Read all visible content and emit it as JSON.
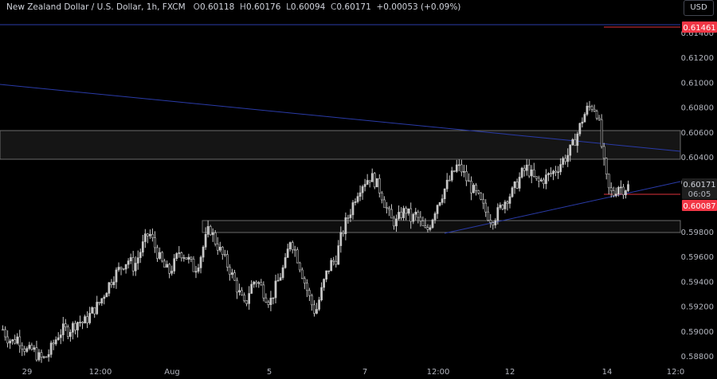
{
  "header": {
    "symbol": "New Zealand Dollar / U.S. Dollar, 1h, FXCM",
    "open_label": "O",
    "open": "0.60118",
    "high_label": "H",
    "high": "0.60176",
    "low_label": "L",
    "low": "0.60094",
    "close_label": "C",
    "close": "0.60171",
    "change": "+0.00053 (+0.09%)"
  },
  "currency_button": "USD",
  "price_labels": {
    "top_line": "0.61461",
    "current_price": "0.60171",
    "countdown": "06:05",
    "level_price": "0.60087"
  },
  "colors": {
    "background": "#000000",
    "candle_up": "#c8c8c8",
    "candle_down": "#c8c8c8",
    "trendline": "#2a3ba8",
    "zone_border": "#6a6a6a",
    "red_line": "#e0323c",
    "price_label_red": "#f23645"
  },
  "chart_data": {
    "type": "candlestick",
    "instrument": "NZDUSD",
    "timeframe": "1h",
    "y_axis_ticks": [
      "0.61400",
      "0.61200",
      "0.61000",
      "0.60800",
      "0.60600",
      "0.60400",
      "0.60200",
      "0.59800",
      "0.59600",
      "0.59400",
      "0.59200",
      "0.59000",
      "0.58800"
    ],
    "x_axis_ticks": [
      "29",
      "12:00",
      "Aug",
      "5",
      "7",
      "12:00",
      "12",
      "14",
      "12:0"
    ],
    "ylim": [
      0.5875,
      0.6154
    ],
    "candles_close_path": [
      0.5902,
      0.5895,
      0.5892,
      0.5896,
      0.5889,
      0.5884,
      0.5886,
      0.588,
      0.5878,
      0.5882,
      0.589,
      0.5898,
      0.5902,
      0.5901,
      0.5905,
      0.5909,
      0.5907,
      0.5912,
      0.5918,
      0.5922,
      0.593,
      0.5938,
      0.5945,
      0.595,
      0.5955,
      0.5958,
      0.5952,
      0.5962,
      0.5972,
      0.598,
      0.597,
      0.596,
      0.5952,
      0.5948,
      0.5955,
      0.5965,
      0.5962,
      0.5957,
      0.595,
      0.5958,
      0.5972,
      0.5984,
      0.5974,
      0.5966,
      0.5958,
      0.595,
      0.594,
      0.593,
      0.592,
      0.5935,
      0.5942,
      0.5938,
      0.593,
      0.5924,
      0.5935,
      0.5945,
      0.5955,
      0.5975,
      0.5965,
      0.5952,
      0.5938,
      0.5925,
      0.5915,
      0.593,
      0.5945,
      0.5955,
      0.5958,
      0.5975,
      0.5988,
      0.5998,
      0.601,
      0.6018,
      0.6022,
      0.6025,
      0.602,
      0.6012,
      0.6,
      0.599,
      0.5988,
      0.5995,
      0.5998,
      0.599,
      0.5995,
      0.5985,
      0.598,
      0.599,
      0.6002,
      0.601,
      0.6018,
      0.6025,
      0.6033,
      0.603,
      0.6022,
      0.6015,
      0.601,
      0.6002,
      0.5995,
      0.599,
      0.5995,
      0.6002,
      0.6008,
      0.6012,
      0.602,
      0.6028,
      0.6032,
      0.6025,
      0.602,
      0.6022,
      0.6025,
      0.6028,
      0.6032,
      0.6038,
      0.6042,
      0.605,
      0.606,
      0.6072,
      0.608,
      0.6082,
      0.6075,
      0.604,
      0.6015,
      0.601,
      0.6018,
      0.6015,
      0.6017
    ],
    "lines": [
      {
        "name": "horizontal resistance",
        "price": 0.61461
      },
      {
        "name": "descending trendline",
        "from_price": 0.61,
        "to_price": 0.6045
      },
      {
        "name": "rising trendline",
        "from_price": 0.5978,
        "to_price": 0.602
      },
      {
        "name": "red level",
        "price": 0.60087
      }
    ],
    "zones": [
      {
        "name": "upper zone",
        "from_price": 0.6038,
        "to_price": 0.6062
      },
      {
        "name": "lower zone",
        "from_price": 0.5978,
        "to_price": 0.5988
      }
    ]
  }
}
